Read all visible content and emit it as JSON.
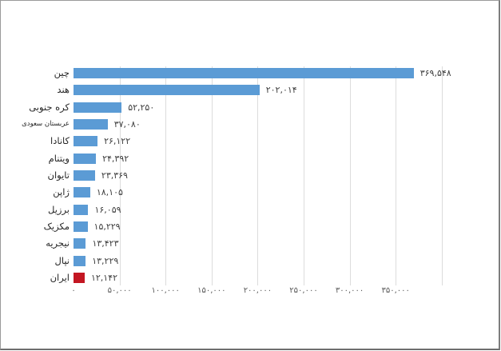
{
  "frame": {
    "background": "#ffffff",
    "border_color": "#8c8c8c"
  },
  "chart_data": {
    "type": "bar",
    "orientation": "horizontal",
    "title": "",
    "xlabel": "",
    "ylabel": "",
    "xlim": [
      0,
      400000
    ],
    "grid": true,
    "tick_step": 50000,
    "legend": "none",
    "colors": {
      "bar": "#5B9BD5",
      "highlight": "#C31622",
      "gridline": "#DCDCDC",
      "value_text": "#3F3F3F",
      "category_text": "#262626",
      "tick_text": "#595959"
    },
    "highlight_index": 12,
    "categories": [
      "چین",
      "هند",
      "کره جنوبی",
      "عربستان سعودی",
      "کانادا",
      "ویتنام",
      "تایوان",
      "ژاپن",
      "برزیل",
      "مکزیک",
      "نیجریه",
      "نپال",
      "ایران"
    ],
    "values": [
      369548,
      202014,
      52250,
      37080,
      26122,
      24392,
      23369,
      18105,
      16059,
      15229,
      13423,
      13229,
      12142
    ],
    "bars": [
      {
        "label": "چین",
        "value": 369548,
        "value_label": "۳۶۹,۵۴۸",
        "color": "#5B9BD5",
        "small_label": false
      },
      {
        "label": "هند",
        "value": 202014,
        "value_label": "۲۰۲,۰۱۴",
        "color": "#5B9BD5",
        "small_label": false
      },
      {
        "label": "کره جنوبی",
        "value": 52250,
        "value_label": "۵۲,۲۵۰",
        "color": "#5B9BD5",
        "small_label": false
      },
      {
        "label": "عربستان سعودی",
        "value": 37080,
        "value_label": "۳۷,۰۸۰",
        "color": "#5B9BD5",
        "small_label": true
      },
      {
        "label": "کانادا",
        "value": 26122,
        "value_label": "۲۶,۱۲۲",
        "color": "#5B9BD5",
        "small_label": false
      },
      {
        "label": "ویتنام",
        "value": 24392,
        "value_label": "۲۴,۳۹۲",
        "color": "#5B9BD5",
        "small_label": false
      },
      {
        "label": "تایوان",
        "value": 23369,
        "value_label": "۲۳,۳۶۹",
        "color": "#5B9BD5",
        "small_label": false
      },
      {
        "label": "ژاپن",
        "value": 18105,
        "value_label": "۱۸,۱۰۵",
        "color": "#5B9BD5",
        "small_label": false
      },
      {
        "label": "برزیل",
        "value": 16059,
        "value_label": "۱۶,۰۵۹",
        "color": "#5B9BD5",
        "small_label": false
      },
      {
        "label": "مکزیک",
        "value": 15229,
        "value_label": "۱۵,۲۲۹",
        "color": "#5B9BD5",
        "small_label": false
      },
      {
        "label": "نیجریه",
        "value": 13423,
        "value_label": "۱۳,۴۲۳",
        "color": "#5B9BD5",
        "small_label": false
      },
      {
        "label": "نپال",
        "value": 13229,
        "value_label": "۱۳,۲۲۹",
        "color": "#5B9BD5",
        "small_label": false
      },
      {
        "label": "ایران",
        "value": 12142,
        "value_label": "۱۲,۱۴۲",
        "color": "#C31622",
        "small_label": false
      }
    ],
    "x_ticks": [
      {
        "value": 0,
        "label": "۰"
      },
      {
        "value": 50000,
        "label": "۵۰,۰۰۰"
      },
      {
        "value": 100000,
        "label": "۱۰۰,۰۰۰"
      },
      {
        "value": 150000,
        "label": "۱۵۰,۰۰۰"
      },
      {
        "value": 200000,
        "label": "۲۰۰,۰۰۰"
      },
      {
        "value": 250000,
        "label": "۲۵۰,۰۰۰"
      },
      {
        "value": 300000,
        "label": "۳۰۰,۰۰۰"
      },
      {
        "value": 350000,
        "label": "۳۵۰,۰۰۰"
      },
      {
        "value": 400000,
        "label": ""
      }
    ]
  }
}
